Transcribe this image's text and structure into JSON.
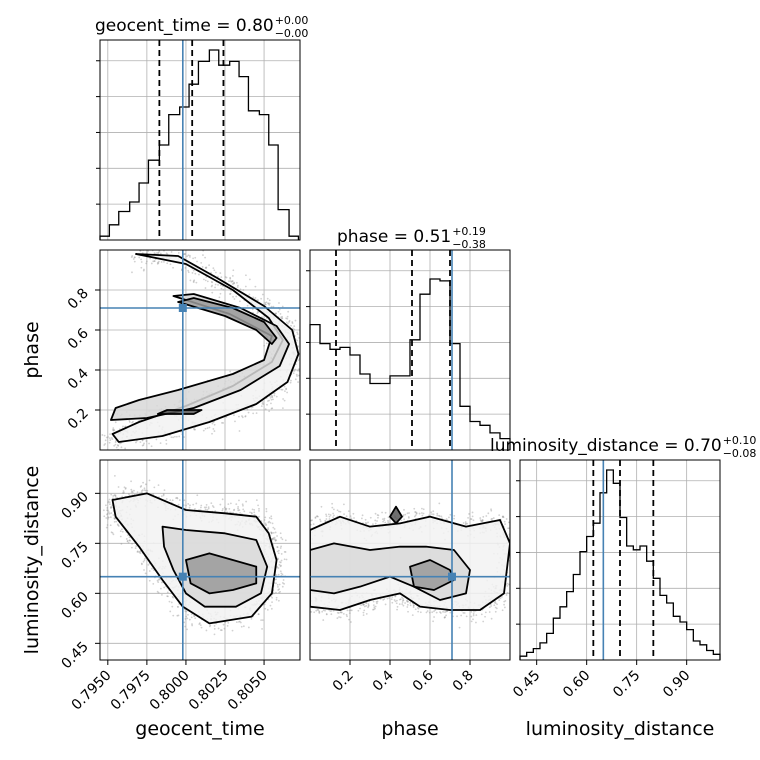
{
  "chart_data": {
    "type": "corner",
    "parameters": [
      "geocent_time",
      "phase",
      "luminosity_distance"
    ],
    "truths": {
      "geocent_time": 0.7998,
      "phase": 0.71,
      "luminosity_distance": 0.65
    },
    "colors": {
      "truth": "#4682b4",
      "hist": "#000000",
      "grid": "#b0b0b0",
      "points": "#9a9a9a"
    },
    "titles": [
      {
        "param": "geocent_time",
        "label": "geocent_time = 0.80",
        "plus": "+0.00",
        "minus": "−0.00"
      },
      {
        "param": "phase",
        "label": "phase = 0.51",
        "plus": "+0.19",
        "minus": "−0.38"
      },
      {
        "param": "luminosity_distance",
        "label": "luminosity_distance = 0.70",
        "plus": "+0.10",
        "minus": "−0.08"
      }
    ],
    "axes": {
      "geocent_time": {
        "range": [
          0.7945,
          0.8073
        ],
        "ticks": [
          "0.7950",
          "0.7975",
          "0.8000",
          "0.8025",
          "0.8050"
        ],
        "tick_values": [
          0.795,
          0.7975,
          0.8,
          0.8025,
          0.805
        ]
      },
      "phase": {
        "range": [
          0.0,
          1.0
        ],
        "ticks": [
          "0.2",
          "0.4",
          "0.6",
          "0.8"
        ],
        "tick_values": [
          0.2,
          0.4,
          0.6,
          0.8
        ]
      },
      "luminosity_distance": {
        "range": [
          0.4,
          1.0
        ],
        "ticks": [
          "0.45",
          "0.60",
          "0.75",
          "0.90"
        ],
        "tick_values": [
          0.45,
          0.6,
          0.75,
          0.9
        ]
      }
    },
    "histograms": {
      "geocent_time": {
        "bin_edges": [
          0.7945,
          0.7951,
          0.7957,
          0.7964,
          0.797,
          0.7976,
          0.7983,
          0.7989,
          0.7996,
          0.8002,
          0.8008,
          0.8015,
          0.8021,
          0.8028,
          0.8034,
          0.804,
          0.8047,
          0.8053,
          0.8059,
          0.8066,
          0.8072
        ],
        "counts": [
          0.02,
          0.08,
          0.15,
          0.2,
          0.3,
          0.42,
          0.5,
          0.66,
          0.7,
          0.82,
          0.94,
          1.0,
          0.92,
          0.94,
          0.86,
          0.68,
          0.66,
          0.5,
          0.16,
          0.02
        ],
        "quantiles": [
          0.7983,
          0.8004,
          0.8024
        ]
      },
      "phase": {
        "bin_edges": [
          0.0,
          0.05,
          0.1,
          0.15,
          0.2,
          0.25,
          0.3,
          0.35,
          0.4,
          0.45,
          0.5,
          0.55,
          0.6,
          0.65,
          0.7,
          0.75,
          0.8,
          0.85,
          0.9,
          0.95,
          1.0
        ],
        "counts": [
          0.66,
          0.56,
          0.53,
          0.54,
          0.5,
          0.4,
          0.35,
          0.35,
          0.39,
          0.39,
          0.58,
          0.82,
          0.9,
          0.89,
          0.56,
          0.23,
          0.15,
          0.13,
          0.09,
          0.06
        ],
        "quantiles": [
          0.13,
          0.51,
          0.7
        ]
      },
      "luminosity_distance": {
        "bin_edges": [
          0.4,
          0.42,
          0.44,
          0.46,
          0.48,
          0.5,
          0.52,
          0.54,
          0.56,
          0.58,
          0.6,
          0.62,
          0.64,
          0.66,
          0.68,
          0.7,
          0.72,
          0.74,
          0.76,
          0.78,
          0.8,
          0.82,
          0.84,
          0.86,
          0.88,
          0.9,
          0.92,
          0.94,
          0.96,
          0.98,
          1.0
        ],
        "counts": [
          0.02,
          0.04,
          0.06,
          0.09,
          0.14,
          0.22,
          0.28,
          0.36,
          0.45,
          0.57,
          0.65,
          0.72,
          0.88,
          1.0,
          0.93,
          0.75,
          0.6,
          0.58,
          0.6,
          0.52,
          0.43,
          0.34,
          0.3,
          0.23,
          0.2,
          0.16,
          0.1,
          0.08,
          0.05,
          0.03
        ],
        "quantiles": [
          0.62,
          0.7,
          0.8
        ]
      }
    },
    "contours": {
      "geocent_time_vs_phase": [
        [
          [
            0.7968,
            0.98
          ],
          [
            0.8,
            0.93
          ],
          [
            0.803,
            0.8
          ],
          [
            0.8053,
            0.66
          ],
          [
            0.8062,
            0.55
          ],
          [
            0.8055,
            0.44
          ],
          [
            0.803,
            0.32
          ],
          [
            0.8,
            0.22
          ],
          [
            0.797,
            0.14
          ],
          [
            0.7953,
            0.08
          ],
          [
            0.7957,
            0.04
          ],
          [
            0.7985,
            0.07
          ],
          [
            0.8015,
            0.14
          ],
          [
            0.8045,
            0.23
          ],
          [
            0.8065,
            0.34
          ],
          [
            0.8072,
            0.48
          ],
          [
            0.8068,
            0.6
          ],
          [
            0.805,
            0.72
          ],
          [
            0.802,
            0.86
          ],
          [
            0.7995,
            0.97
          ]
        ],
        [
          [
            0.7992,
            0.77
          ],
          [
            0.8028,
            0.68
          ],
          [
            0.8055,
            0.57
          ],
          [
            0.805,
            0.45
          ],
          [
            0.803,
            0.38
          ],
          [
            0.7995,
            0.3
          ],
          [
            0.797,
            0.25
          ],
          [
            0.7955,
            0.21
          ],
          [
            0.7952,
            0.15
          ],
          [
            0.7975,
            0.16
          ],
          [
            0.8005,
            0.21
          ],
          [
            0.8035,
            0.3
          ],
          [
            0.806,
            0.42
          ],
          [
            0.8066,
            0.53
          ],
          [
            0.8058,
            0.62
          ],
          [
            0.8035,
            0.71
          ],
          [
            0.8005,
            0.78
          ]
        ],
        [
          [
            0.7995,
            0.74
          ],
          [
            0.8025,
            0.67
          ],
          [
            0.8045,
            0.6
          ],
          [
            0.8055,
            0.53
          ],
          [
            0.8058,
            0.56
          ],
          [
            0.805,
            0.64
          ],
          [
            0.803,
            0.71
          ],
          [
            0.8005,
            0.76
          ]
        ],
        [
          [
            0.7982,
            0.18
          ],
          [
            0.8005,
            0.18
          ],
          [
            0.801,
            0.2
          ],
          [
            0.7988,
            0.2
          ]
        ]
      ],
      "geocent_time_vs_luminosity_distance": [
        [
          [
            0.7953,
            0.88
          ],
          [
            0.7975,
            0.9
          ],
          [
            0.8,
            0.85
          ],
          [
            0.8025,
            0.84
          ],
          [
            0.8045,
            0.83
          ],
          [
            0.8053,
            0.78
          ],
          [
            0.8058,
            0.7
          ],
          [
            0.8055,
            0.6
          ],
          [
            0.8042,
            0.53
          ],
          [
            0.8015,
            0.51
          ],
          [
            0.7998,
            0.56
          ],
          [
            0.7985,
            0.64
          ],
          [
            0.797,
            0.74
          ],
          [
            0.7955,
            0.83
          ]
        ],
        [
          [
            0.7985,
            0.8
          ],
          [
            0.8,
            0.79
          ],
          [
            0.8025,
            0.78
          ],
          [
            0.8045,
            0.76
          ],
          [
            0.8052,
            0.68
          ],
          [
            0.8048,
            0.6
          ],
          [
            0.8032,
            0.56
          ],
          [
            0.8012,
            0.56
          ],
          [
            0.8,
            0.6
          ],
          [
            0.7992,
            0.67
          ],
          [
            0.7986,
            0.74
          ]
        ],
        [
          [
            0.8,
            0.7
          ],
          [
            0.8015,
            0.72
          ],
          [
            0.803,
            0.7
          ],
          [
            0.8045,
            0.68
          ],
          [
            0.8045,
            0.63
          ],
          [
            0.803,
            0.61
          ],
          [
            0.8015,
            0.6
          ],
          [
            0.8003,
            0.63
          ]
        ]
      ],
      "phase_vs_luminosity_distance": [
        [
          [
            0.0,
            0.79
          ],
          [
            0.15,
            0.83
          ],
          [
            0.3,
            0.8
          ],
          [
            0.45,
            0.81
          ],
          [
            0.6,
            0.83
          ],
          [
            0.78,
            0.8
          ],
          [
            0.95,
            0.82
          ],
          [
            1.0,
            0.75
          ],
          [
            0.97,
            0.6
          ],
          [
            0.85,
            0.55
          ],
          [
            0.7,
            0.55
          ],
          [
            0.55,
            0.56
          ],
          [
            0.45,
            0.6
          ],
          [
            0.3,
            0.58
          ],
          [
            0.15,
            0.55
          ],
          [
            0.0,
            0.56
          ]
        ],
        [
          [
            0.0,
            0.73
          ],
          [
            0.12,
            0.75
          ],
          [
            0.3,
            0.73
          ],
          [
            0.45,
            0.74
          ],
          [
            0.58,
            0.74
          ],
          [
            0.72,
            0.73
          ],
          [
            0.8,
            0.67
          ],
          [
            0.78,
            0.6
          ],
          [
            0.65,
            0.58
          ],
          [
            0.52,
            0.62
          ],
          [
            0.4,
            0.65
          ],
          [
            0.25,
            0.62
          ],
          [
            0.12,
            0.6
          ],
          [
            0.0,
            0.61
          ]
        ],
        [
          [
            0.5,
            0.68
          ],
          [
            0.6,
            0.7
          ],
          [
            0.7,
            0.67
          ],
          [
            0.72,
            0.64
          ],
          [
            0.62,
            0.61
          ],
          [
            0.52,
            0.62
          ]
        ],
        [
          [
            0.4,
            0.83
          ],
          [
            0.43,
            0.86
          ],
          [
            0.46,
            0.83
          ],
          [
            0.43,
            0.81
          ]
        ]
      ]
    }
  }
}
